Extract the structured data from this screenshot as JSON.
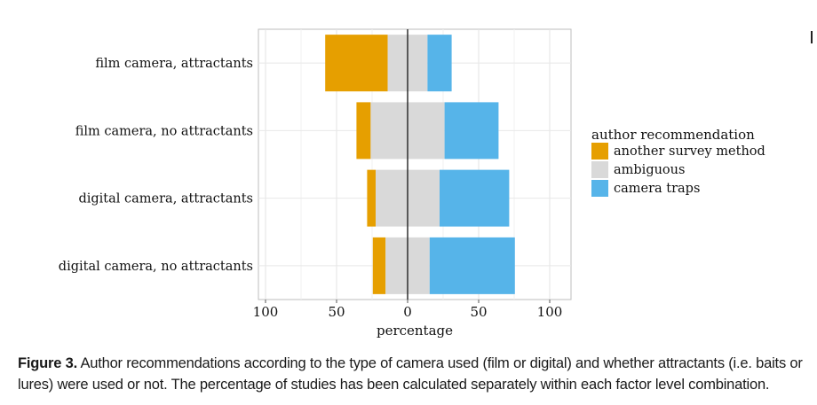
{
  "chart_data": {
    "type": "bar",
    "orientation": "horizontal",
    "layout": "diverging-stacked",
    "categories": [
      "film camera, attractants",
      "film camera, no attractants",
      "digital camera, attractants",
      "digital camera, no attractants"
    ],
    "series": [
      {
        "name": "another survey method",
        "color": "#E69F00",
        "values": [
          44,
          10,
          6,
          9
        ]
      },
      {
        "name": "ambiguous",
        "color": "#D9D9D9",
        "values": [
          28,
          52,
          45,
          31
        ]
      },
      {
        "name": "camera traps",
        "color": "#56B4E9",
        "values": [
          17,
          38,
          49,
          60
        ]
      }
    ],
    "xlabel": "percentage",
    "xlim": [
      -105,
      115
    ],
    "xticks": [
      -100,
      -50,
      0,
      50,
      100
    ],
    "xtick_labels": [
      "100",
      "50",
      "0",
      "50",
      "100"
    ],
    "legend_title": "author recommendation",
    "legend_position": "right",
    "grid": true
  },
  "caption": {
    "figure_label": "Figure 3.",
    "text": " Author recommendations according to the type of camera used (film or digital) and whether attractants (i.e. baits or lures) were used or not. The percentage of studies has been calculated separately within each factor level combination."
  }
}
